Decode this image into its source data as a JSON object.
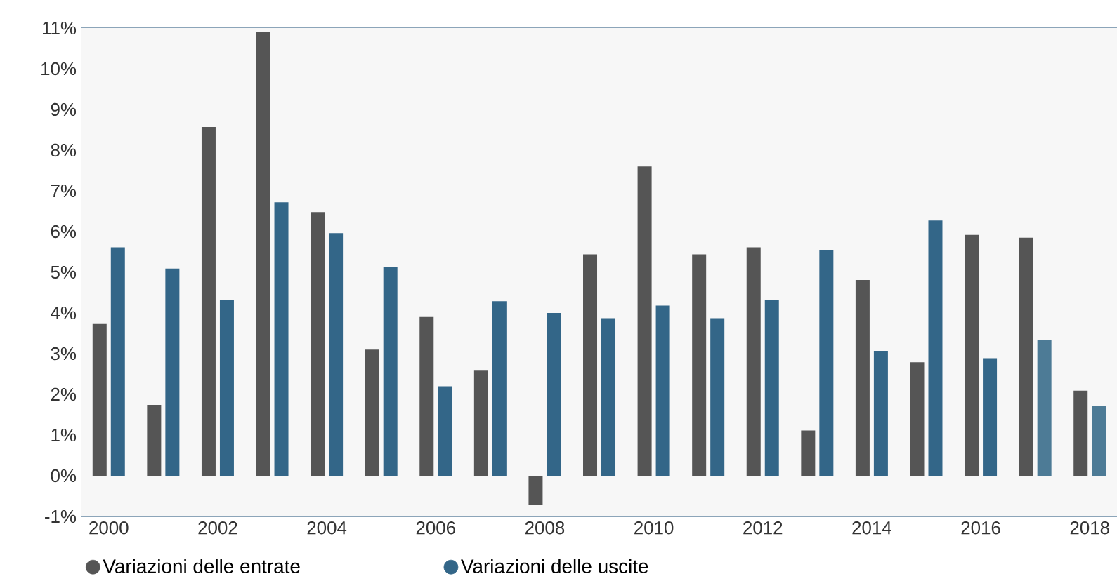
{
  "chart_data": {
    "type": "bar",
    "categories": [
      "2000",
      null,
      "2002",
      null,
      "2004",
      null,
      "2006",
      null,
      "2008",
      null,
      "2010",
      null,
      "2012",
      null,
      "2014",
      null,
      "2016",
      null,
      "2018"
    ],
    "series": [
      {
        "name": "Variazioni delle entrate",
        "color": "#555555",
        "values": [
          3.73,
          1.74,
          8.57,
          10.9,
          6.48,
          3.1,
          3.9,
          2.58,
          -0.72,
          5.44,
          7.6,
          5.44,
          5.61,
          1.11,
          4.81,
          2.79,
          5.92,
          5.85,
          2.09
        ]
      },
      {
        "name": "Variazioni delle uscite",
        "color": "#336688",
        "colors": [
          "#336688",
          "#336688",
          "#336688",
          "#336688",
          "#336688",
          "#336688",
          "#336688",
          "#336688",
          "#336688",
          "#336688",
          "#336688",
          "#336688",
          "#336688",
          "#336688",
          "#336688",
          "#336688",
          "#336688",
          "#4d7b96",
          "#4d7b96"
        ],
        "values": [
          5.61,
          5.09,
          4.32,
          6.72,
          5.96,
          5.12,
          2.2,
          4.29,
          4.0,
          3.87,
          4.18,
          3.87,
          4.32,
          5.54,
          3.07,
          6.27,
          2.89,
          3.34,
          1.71
        ]
      }
    ],
    "ylim": [
      -1,
      11
    ],
    "yticks": [
      {
        "value": -1,
        "label": "-1%"
      },
      {
        "value": 0,
        "label": "0%"
      },
      {
        "value": 1,
        "label": "1%"
      },
      {
        "value": 2,
        "label": "2%"
      },
      {
        "value": 3,
        "label": "3%"
      },
      {
        "value": 4,
        "label": "4%"
      },
      {
        "value": 5,
        "label": "5%"
      },
      {
        "value": 6,
        "label": "6%"
      },
      {
        "value": 7,
        "label": "7%"
      },
      {
        "value": 8,
        "label": "8%"
      },
      {
        "value": 9,
        "label": "9%"
      },
      {
        "value": 10,
        "label": "10%"
      },
      {
        "value": 11,
        "label": "11%"
      }
    ],
    "grid": "y",
    "legend": "bottom"
  }
}
